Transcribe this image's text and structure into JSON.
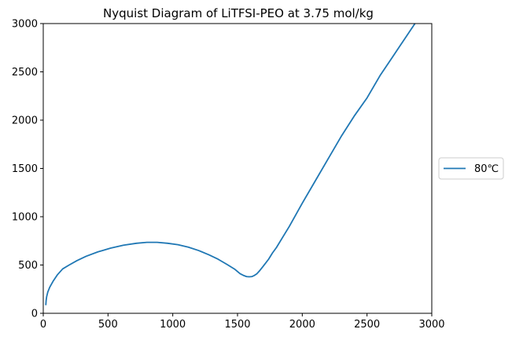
{
  "chart_data": {
    "type": "line",
    "title": "Nyquist Diagram of LiTFSI-PEO at 3.75 mol/kg",
    "xlabel": "",
    "ylabel": "",
    "xlim": [
      0,
      3000
    ],
    "ylim": [
      0,
      3000
    ],
    "x_ticks": [
      0,
      500,
      1000,
      1500,
      2000,
      2500,
      3000
    ],
    "y_ticks": [
      0,
      500,
      1000,
      1500,
      2000,
      2500,
      3000
    ],
    "x_tick_labels": [
      "0",
      "500",
      "1000",
      "1500",
      "2000",
      "2500",
      "3000"
    ],
    "y_tick_labels": [
      "0",
      "500",
      "1000",
      "1500",
      "2000",
      "2500",
      "3000"
    ],
    "grid": false,
    "legend_position": "right, outside plot",
    "series": [
      {
        "name": "80℃",
        "color": "#1f77b4",
        "x": [
          20,
          22,
          26,
          35,
          50,
          75,
          110,
          150,
          200,
          260,
          330,
          420,
          520,
          620,
          720,
          800,
          880,
          960,
          1040,
          1120,
          1200,
          1280,
          1350,
          1420,
          1480,
          1520,
          1550,
          1570,
          1590,
          1610,
          1630,
          1650,
          1670,
          1700,
          1740,
          1770,
          1800,
          1850,
          1900,
          1950,
          2000,
          2100,
          2200,
          2300,
          2400,
          2500,
          2550,
          2600,
          2700,
          2800,
          2870
        ],
        "y": [
          90,
          130,
          170,
          220,
          270,
          330,
          400,
          460,
          500,
          545,
          590,
          635,
          675,
          705,
          725,
          735,
          735,
          725,
          710,
          685,
          650,
          605,
          560,
          505,
          455,
          410,
          390,
          380,
          378,
          380,
          392,
          410,
          440,
          490,
          560,
          625,
          680,
          790,
          900,
          1020,
          1140,
          1370,
          1600,
          1830,
          2040,
          2230,
          2345,
          2460,
          2660,
          2860,
          3000
        ]
      }
    ]
  }
}
